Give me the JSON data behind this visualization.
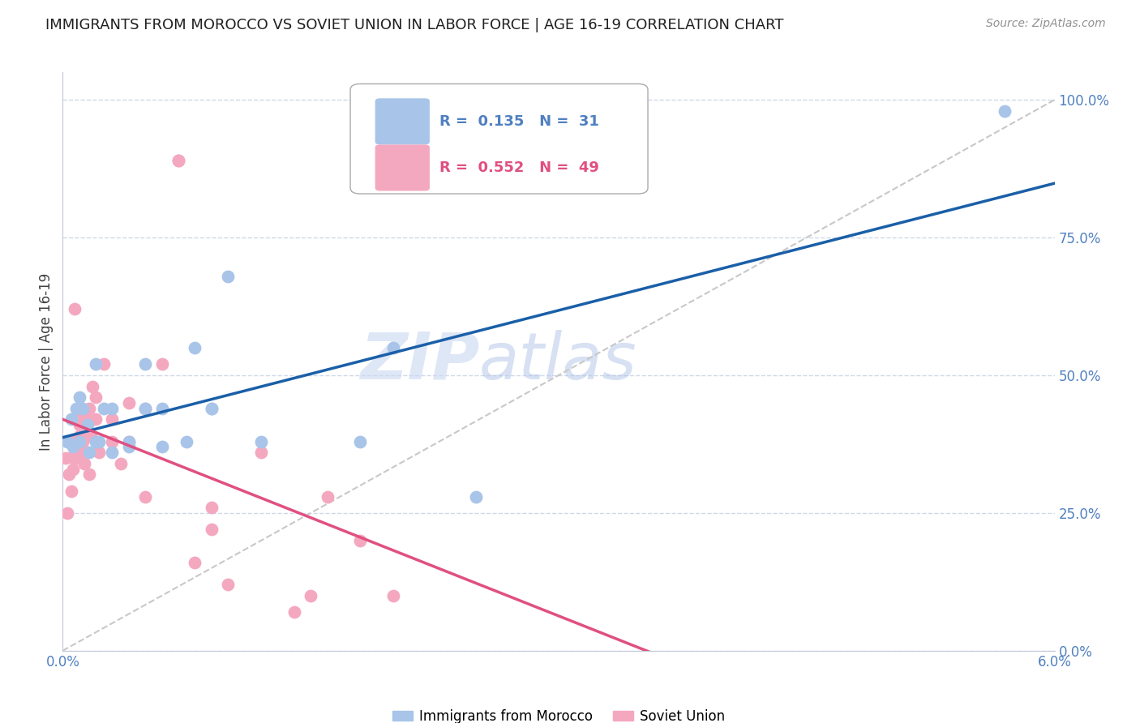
{
  "title": "IMMIGRANTS FROM MOROCCO VS SOVIET UNION IN LABOR FORCE | AGE 16-19 CORRELATION CHART",
  "source": "Source: ZipAtlas.com",
  "ylabel": "In Labor Force | Age 16-19",
  "xlim": [
    0.0,
    0.06
  ],
  "ylim": [
    0.0,
    1.05
  ],
  "yticks": [
    0.0,
    0.25,
    0.5,
    0.75,
    1.0
  ],
  "ytick_labels": [
    "0.0%",
    "25.0%",
    "50.0%",
    "75.0%",
    "100.0%"
  ],
  "xticks": [
    0.0,
    0.01,
    0.02,
    0.03,
    0.04,
    0.05,
    0.06
  ],
  "xtick_labels": [
    "0.0%",
    "",
    "",
    "",
    "",
    "",
    "6.0%"
  ],
  "legend_morocco": {
    "R": "0.135",
    "N": "31"
  },
  "legend_soviet": {
    "R": "0.552",
    "N": "49"
  },
  "morocco_color": "#a8c4e8",
  "soviet_color": "#f4a8c0",
  "morocco_line_color": "#1a5fa8",
  "soviet_line_color": "#e05080",
  "diagonal_color": "#c8c8c8",
  "background_color": "#ffffff",
  "grid_color": "#d0d8e8",
  "watermark_zip": "ZIP",
  "watermark_atlas": "atlas",
  "morocco_x": [
    0.0003,
    0.0005,
    0.0006,
    0.0008,
    0.001,
    0.001,
    0.0012,
    0.0015,
    0.0016,
    0.002,
    0.002,
    0.0022,
    0.0025,
    0.003,
    0.003,
    0.004,
    0.004,
    0.005,
    0.005,
    0.006,
    0.006,
    0.0075,
    0.008,
    0.009,
    0.009,
    0.01,
    0.012,
    0.018,
    0.02,
    0.025,
    0.057
  ],
  "morocco_y": [
    0.38,
    0.42,
    0.37,
    0.44,
    0.46,
    0.38,
    0.44,
    0.41,
    0.36,
    0.52,
    0.38,
    0.38,
    0.44,
    0.44,
    0.36,
    0.37,
    0.38,
    0.52,
    0.44,
    0.37,
    0.44,
    0.38,
    0.55,
    0.44,
    0.44,
    0.68,
    0.38,
    0.38,
    0.55,
    0.28,
    0.98
  ],
  "soviet_x": [
    0.0002,
    0.0003,
    0.0004,
    0.0004,
    0.0005,
    0.0005,
    0.0006,
    0.0006,
    0.0007,
    0.0007,
    0.0008,
    0.0008,
    0.0009,
    0.001,
    0.001,
    0.0011,
    0.0012,
    0.0012,
    0.0013,
    0.0014,
    0.0015,
    0.0016,
    0.0016,
    0.0017,
    0.0018,
    0.002,
    0.002,
    0.0022,
    0.0025,
    0.003,
    0.003,
    0.0035,
    0.004,
    0.004,
    0.005,
    0.005,
    0.006,
    0.007,
    0.007,
    0.008,
    0.009,
    0.009,
    0.01,
    0.012,
    0.014,
    0.015,
    0.016,
    0.018,
    0.02
  ],
  "soviet_y": [
    0.35,
    0.25,
    0.32,
    0.38,
    0.38,
    0.29,
    0.33,
    0.35,
    0.62,
    0.36,
    0.37,
    0.35,
    0.38,
    0.41,
    0.39,
    0.36,
    0.43,
    0.38,
    0.34,
    0.42,
    0.36,
    0.44,
    0.32,
    0.39,
    0.48,
    0.46,
    0.42,
    0.36,
    0.52,
    0.42,
    0.38,
    0.34,
    0.38,
    0.45,
    0.28,
    0.44,
    0.52,
    0.89,
    0.89,
    0.16,
    0.22,
    0.26,
    0.12,
    0.36,
    0.07,
    0.1,
    0.28,
    0.2,
    0.1
  ]
}
